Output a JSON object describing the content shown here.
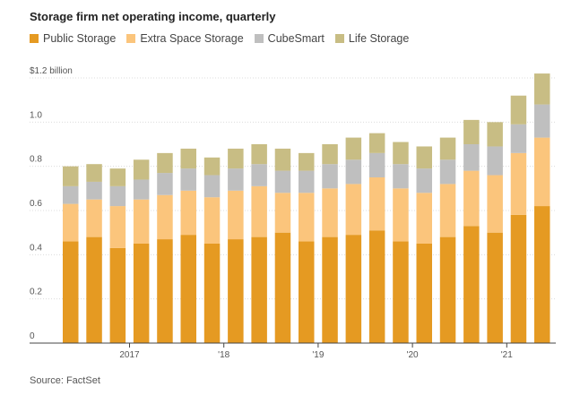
{
  "chart_data": {
    "type": "bar",
    "stacked": true,
    "title": "Storage firm net operating income, quarterly",
    "source": "Source: FactSet",
    "y_tick_labels": [
      "$1.2 billion",
      "1.0",
      "0.8",
      "0.6",
      "0.4",
      "0.2",
      "0"
    ],
    "y_ticks": [
      1.2,
      1.0,
      0.8,
      0.6,
      0.4,
      0.2,
      0
    ],
    "ylim": [
      0,
      1.2
    ],
    "x_tick_labels": [
      "2017",
      "'18",
      "'19",
      "'20",
      "'21"
    ],
    "x_tick_after_index": [
      2,
      6,
      10,
      14,
      18
    ],
    "grid": true,
    "legend_position": "top",
    "series": [
      {
        "name": "Public Storage",
        "color": "#e59a22",
        "values": [
          0.46,
          0.48,
          0.43,
          0.45,
          0.47,
          0.49,
          0.45,
          0.47,
          0.48,
          0.5,
          0.46,
          0.48,
          0.49,
          0.51,
          0.46,
          0.45,
          0.48,
          0.53,
          0.5,
          0.58,
          0.62
        ]
      },
      {
        "name": "Extra Space Storage",
        "color": "#fbc57c",
        "values": [
          0.17,
          0.17,
          0.19,
          0.2,
          0.2,
          0.2,
          0.21,
          0.22,
          0.23,
          0.18,
          0.22,
          0.22,
          0.23,
          0.24,
          0.24,
          0.23,
          0.24,
          0.25,
          0.26,
          0.28,
          0.31
        ]
      },
      {
        "name": "CubeSmart",
        "color": "#bfbfbf",
        "values": [
          0.08,
          0.08,
          0.09,
          0.09,
          0.1,
          0.1,
          0.1,
          0.1,
          0.1,
          0.1,
          0.1,
          0.11,
          0.11,
          0.11,
          0.11,
          0.11,
          0.11,
          0.12,
          0.13,
          0.13,
          0.15
        ]
      },
      {
        "name": "Life Storage",
        "color": "#c8bd84",
        "values": [
          0.09,
          0.08,
          0.08,
          0.09,
          0.09,
          0.09,
          0.08,
          0.09,
          0.09,
          0.1,
          0.08,
          0.09,
          0.1,
          0.09,
          0.1,
          0.1,
          0.1,
          0.11,
          0.11,
          0.13,
          0.14
        ]
      }
    ]
  }
}
